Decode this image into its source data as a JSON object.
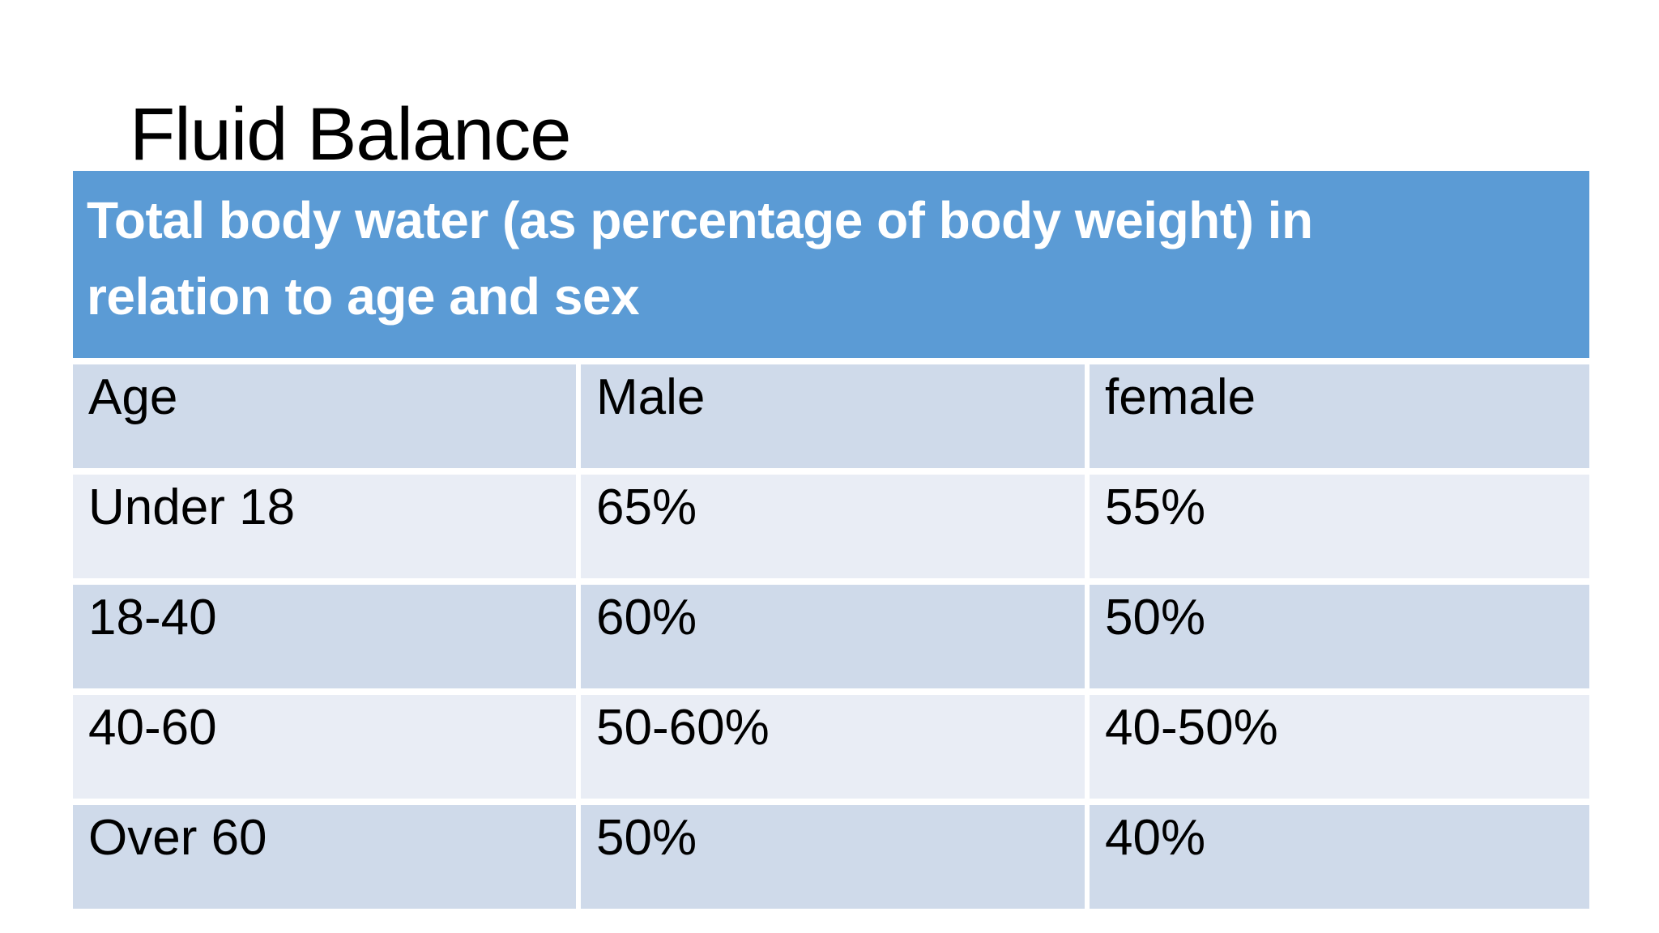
{
  "slide": {
    "title": "Fluid Balance",
    "table": {
      "caption": "Total body water (as percentage of body weight) in relation to age and sex",
      "caption_lines": [
        "Total body water (as percentage of body weight) in",
        "relation to age and sex"
      ],
      "columns": [
        "Age",
        "Male",
        "female"
      ],
      "rows": [
        [
          "Under 18",
          "65%",
          "55%"
        ],
        [
          "18-40",
          "60%",
          "50%"
        ],
        [
          "40-60",
          "50-60%",
          "40-50%"
        ],
        [
          "Over 60",
          "50%",
          "40%"
        ]
      ]
    }
  },
  "colors": {
    "caption_background": "#5b9bd5",
    "caption_text": "#ffffff",
    "band_dark": "#cfdaea",
    "band_light": "#e9edf5",
    "title_text": "#000000",
    "cell_text": "#000000",
    "page_background": "#ffffff"
  }
}
